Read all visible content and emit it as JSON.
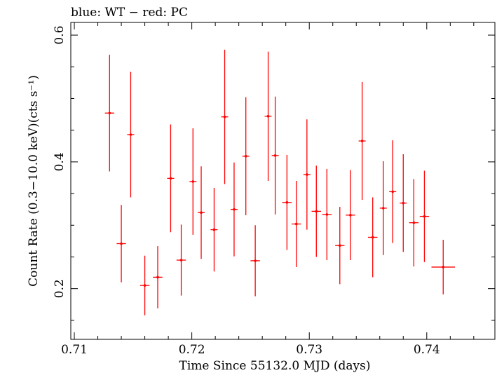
{
  "chart_data": {
    "type": "scatter",
    "title": "blue: WT − red: PC",
    "xlabel": "Time Since 55132.0 MJD (days)",
    "ylabel": "Count Rate (0.3−10.0 keV)(cts s⁻¹)",
    "xlim": [
      0.7097,
      0.7458
    ],
    "ylim": [
      0.12,
      0.62
    ],
    "x_ticks": [
      "0.71",
      "0.72",
      "0.73",
      "0.74"
    ],
    "y_ticks": [
      "0.2",
      "0.4",
      "0.6"
    ],
    "grid": false,
    "error_bars": true,
    "series": [
      {
        "color": "#ff0000",
        "points": [
          {
            "x": 0.713,
            "xerr": 0.0004,
            "y": 0.477,
            "yerr": 0.092
          },
          {
            "x": 0.714,
            "xerr": 0.0004,
            "y": 0.271,
            "yerr": 0.061
          },
          {
            "x": 0.7148,
            "xerr": 0.0003,
            "y": 0.443,
            "yerr": 0.099
          },
          {
            "x": 0.716,
            "xerr": 0.0004,
            "y": 0.205,
            "yerr": 0.047
          },
          {
            "x": 0.7171,
            "xerr": 0.0004,
            "y": 0.218,
            "yerr": 0.049
          },
          {
            "x": 0.7182,
            "xerr": 0.0003,
            "y": 0.374,
            "yerr": 0.085
          },
          {
            "x": 0.7191,
            "xerr": 0.0004,
            "y": 0.245,
            "yerr": 0.056
          },
          {
            "x": 0.7201,
            "xerr": 0.0003,
            "y": 0.369,
            "yerr": 0.084
          },
          {
            "x": 0.7208,
            "xerr": 0.0003,
            "y": 0.32,
            "yerr": 0.073
          },
          {
            "x": 0.7219,
            "xerr": 0.0003,
            "y": 0.293,
            "yerr": 0.066
          },
          {
            "x": 0.7228,
            "xerr": 0.0003,
            "y": 0.471,
            "yerr": 0.106
          },
          {
            "x": 0.7236,
            "xerr": 0.0003,
            "y": 0.325,
            "yerr": 0.074
          },
          {
            "x": 0.7246,
            "xerr": 0.0003,
            "y": 0.409,
            "yerr": 0.093
          },
          {
            "x": 0.7254,
            "xerr": 0.0004,
            "y": 0.244,
            "yerr": 0.056
          },
          {
            "x": 0.7265,
            "xerr": 0.0003,
            "y": 0.472,
            "yerr": 0.102
          },
          {
            "x": 0.7271,
            "xerr": 0.0003,
            "y": 0.41,
            "yerr": 0.093
          },
          {
            "x": 0.7281,
            "xerr": 0.0004,
            "y": 0.336,
            "yerr": 0.075
          },
          {
            "x": 0.7289,
            "xerr": 0.0004,
            "y": 0.302,
            "yerr": 0.068
          },
          {
            "x": 0.7298,
            "xerr": 0.0003,
            "y": 0.38,
            "yerr": 0.087
          },
          {
            "x": 0.7306,
            "xerr": 0.0004,
            "y": 0.322,
            "yerr": 0.072
          },
          {
            "x": 0.7315,
            "xerr": 0.0004,
            "y": 0.317,
            "yerr": 0.072
          },
          {
            "x": 0.7326,
            "xerr": 0.0004,
            "y": 0.268,
            "yerr": 0.061
          },
          {
            "x": 0.7335,
            "xerr": 0.0004,
            "y": 0.316,
            "yerr": 0.071
          },
          {
            "x": 0.7345,
            "xerr": 0.0003,
            "y": 0.433,
            "yerr": 0.093
          },
          {
            "x": 0.7354,
            "xerr": 0.0004,
            "y": 0.281,
            "yerr": 0.063
          },
          {
            "x": 0.7363,
            "xerr": 0.0003,
            "y": 0.327,
            "yerr": 0.074
          },
          {
            "x": 0.7371,
            "xerr": 0.0003,
            "y": 0.353,
            "yerr": 0.081
          },
          {
            "x": 0.738,
            "xerr": 0.0003,
            "y": 0.335,
            "yerr": 0.077
          },
          {
            "x": 0.7389,
            "xerr": 0.0004,
            "y": 0.304,
            "yerr": 0.069
          },
          {
            "x": 0.7398,
            "xerr": 0.0004,
            "y": 0.314,
            "yerr": 0.072
          },
          {
            "x": 0.7414,
            "xerr": 0.001,
            "y": 0.234,
            "yerr": 0.043
          }
        ]
      }
    ]
  }
}
